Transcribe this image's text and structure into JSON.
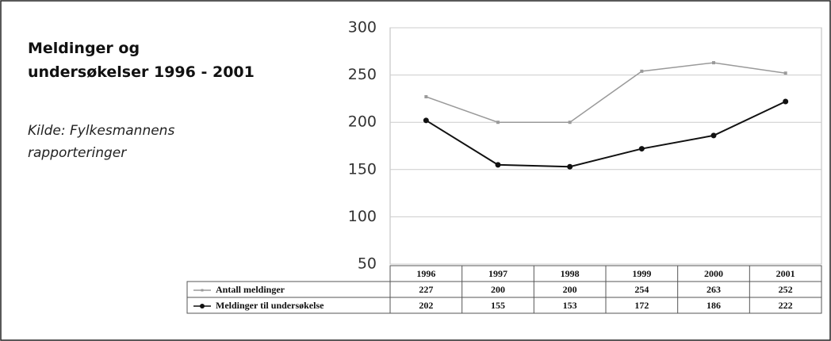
{
  "chart_data": {
    "type": "line",
    "title": [
      "Meldinger og",
      "undersøkelser 1996 - 2001"
    ],
    "source": [
      "Kilde: Fylkesmannens",
      "rapporteringer"
    ],
    "categories": [
      "1996",
      "1997",
      "1998",
      "1999",
      "2000",
      "2001"
    ],
    "series": [
      {
        "name": "Antall meldinger",
        "color": "#9a9a9a",
        "values": [
          227,
          200,
          200,
          254,
          263,
          252
        ]
      },
      {
        "name": "Meldinger til undersøkelse",
        "color": "#111111",
        "values": [
          202,
          155,
          153,
          172,
          186,
          222
        ]
      }
    ],
    "ylim": [
      50,
      300
    ],
    "yticks": [
      50,
      100,
      150,
      200,
      250,
      300
    ],
    "grid": true
  }
}
